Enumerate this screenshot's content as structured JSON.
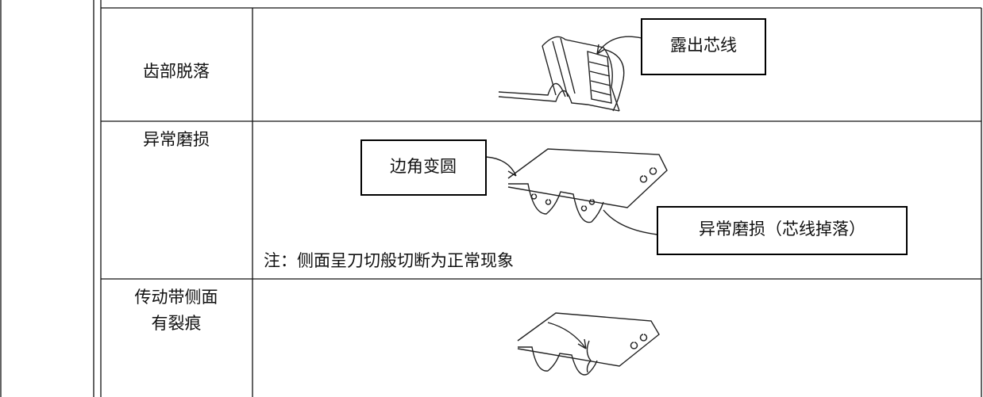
{
  "table": {
    "rows": [
      {
        "label": [
          "齿部脱落"
        ],
        "callouts": [
          "露出芯线"
        ]
      },
      {
        "label": [
          "异常磨损"
        ],
        "callouts": [
          "边角变圆",
          "异常磨损（芯线掉落）"
        ],
        "note": "注：侧面呈刀切般切断为正常现象"
      },
      {
        "label": [
          "传动带侧面",
          "有裂痕"
        ],
        "callouts": []
      }
    ]
  }
}
